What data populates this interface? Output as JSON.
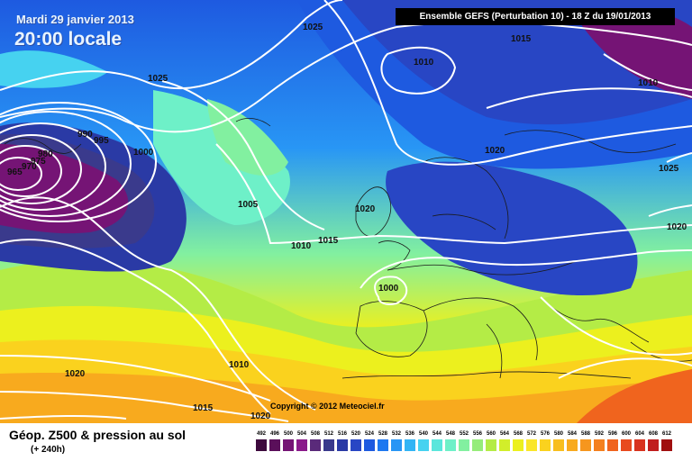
{
  "header": {
    "date_line": "Mardi 29 janvier 2013",
    "time_line": "20:00 locale",
    "run_info": "Ensemble GEFS (Perturbation 10)  -  18 Z du 19/01/2013"
  },
  "copyright": "Copyright © 2012 Meteociel.fr",
  "legend": {
    "title": "Géop. Z500 & pression au sol",
    "subtitle": "(+ 240h)",
    "ticks": [
      "492",
      "496",
      "500",
      "504",
      "508",
      "512",
      "516",
      "520",
      "524",
      "528",
      "532",
      "536",
      "540",
      "544",
      "548",
      "552",
      "556",
      "560",
      "564",
      "568",
      "572",
      "576",
      "580",
      "584",
      "588",
      "592",
      "596",
      "600",
      "604",
      "608",
      "612"
    ],
    "colors": [
      "#3d0a3d",
      "#5a0f5a",
      "#751475",
      "#8a1a8a",
      "#5a2a7a",
      "#3a3a8c",
      "#2a3aa5",
      "#2846c4",
      "#1e5ae0",
      "#1e78f0",
      "#2896f5",
      "#32b4f5",
      "#46d2f0",
      "#5ae6dc",
      "#6ef0c8",
      "#82f0a0",
      "#96ec7a",
      "#b4ec46",
      "#d2ee2a",
      "#ecf01e",
      "#fae628",
      "#fad21e",
      "#f8be1e",
      "#f8aa1e",
      "#f6961e",
      "#f4801e",
      "#f0641e",
      "#e84a1e",
      "#d8321e",
      "#c01e1e",
      "#a00f0f"
    ]
  },
  "isobar_labels": [
    "1025",
    "1015",
    "1010",
    "1010",
    "1025",
    "1020",
    "1025",
    "1020",
    "1020",
    "1015",
    "1010",
    "1000",
    "1000",
    "1005",
    "1020",
    "1010",
    "1015",
    "1020",
    "980",
    "990",
    "995",
    "975",
    "970",
    "965"
  ]
}
